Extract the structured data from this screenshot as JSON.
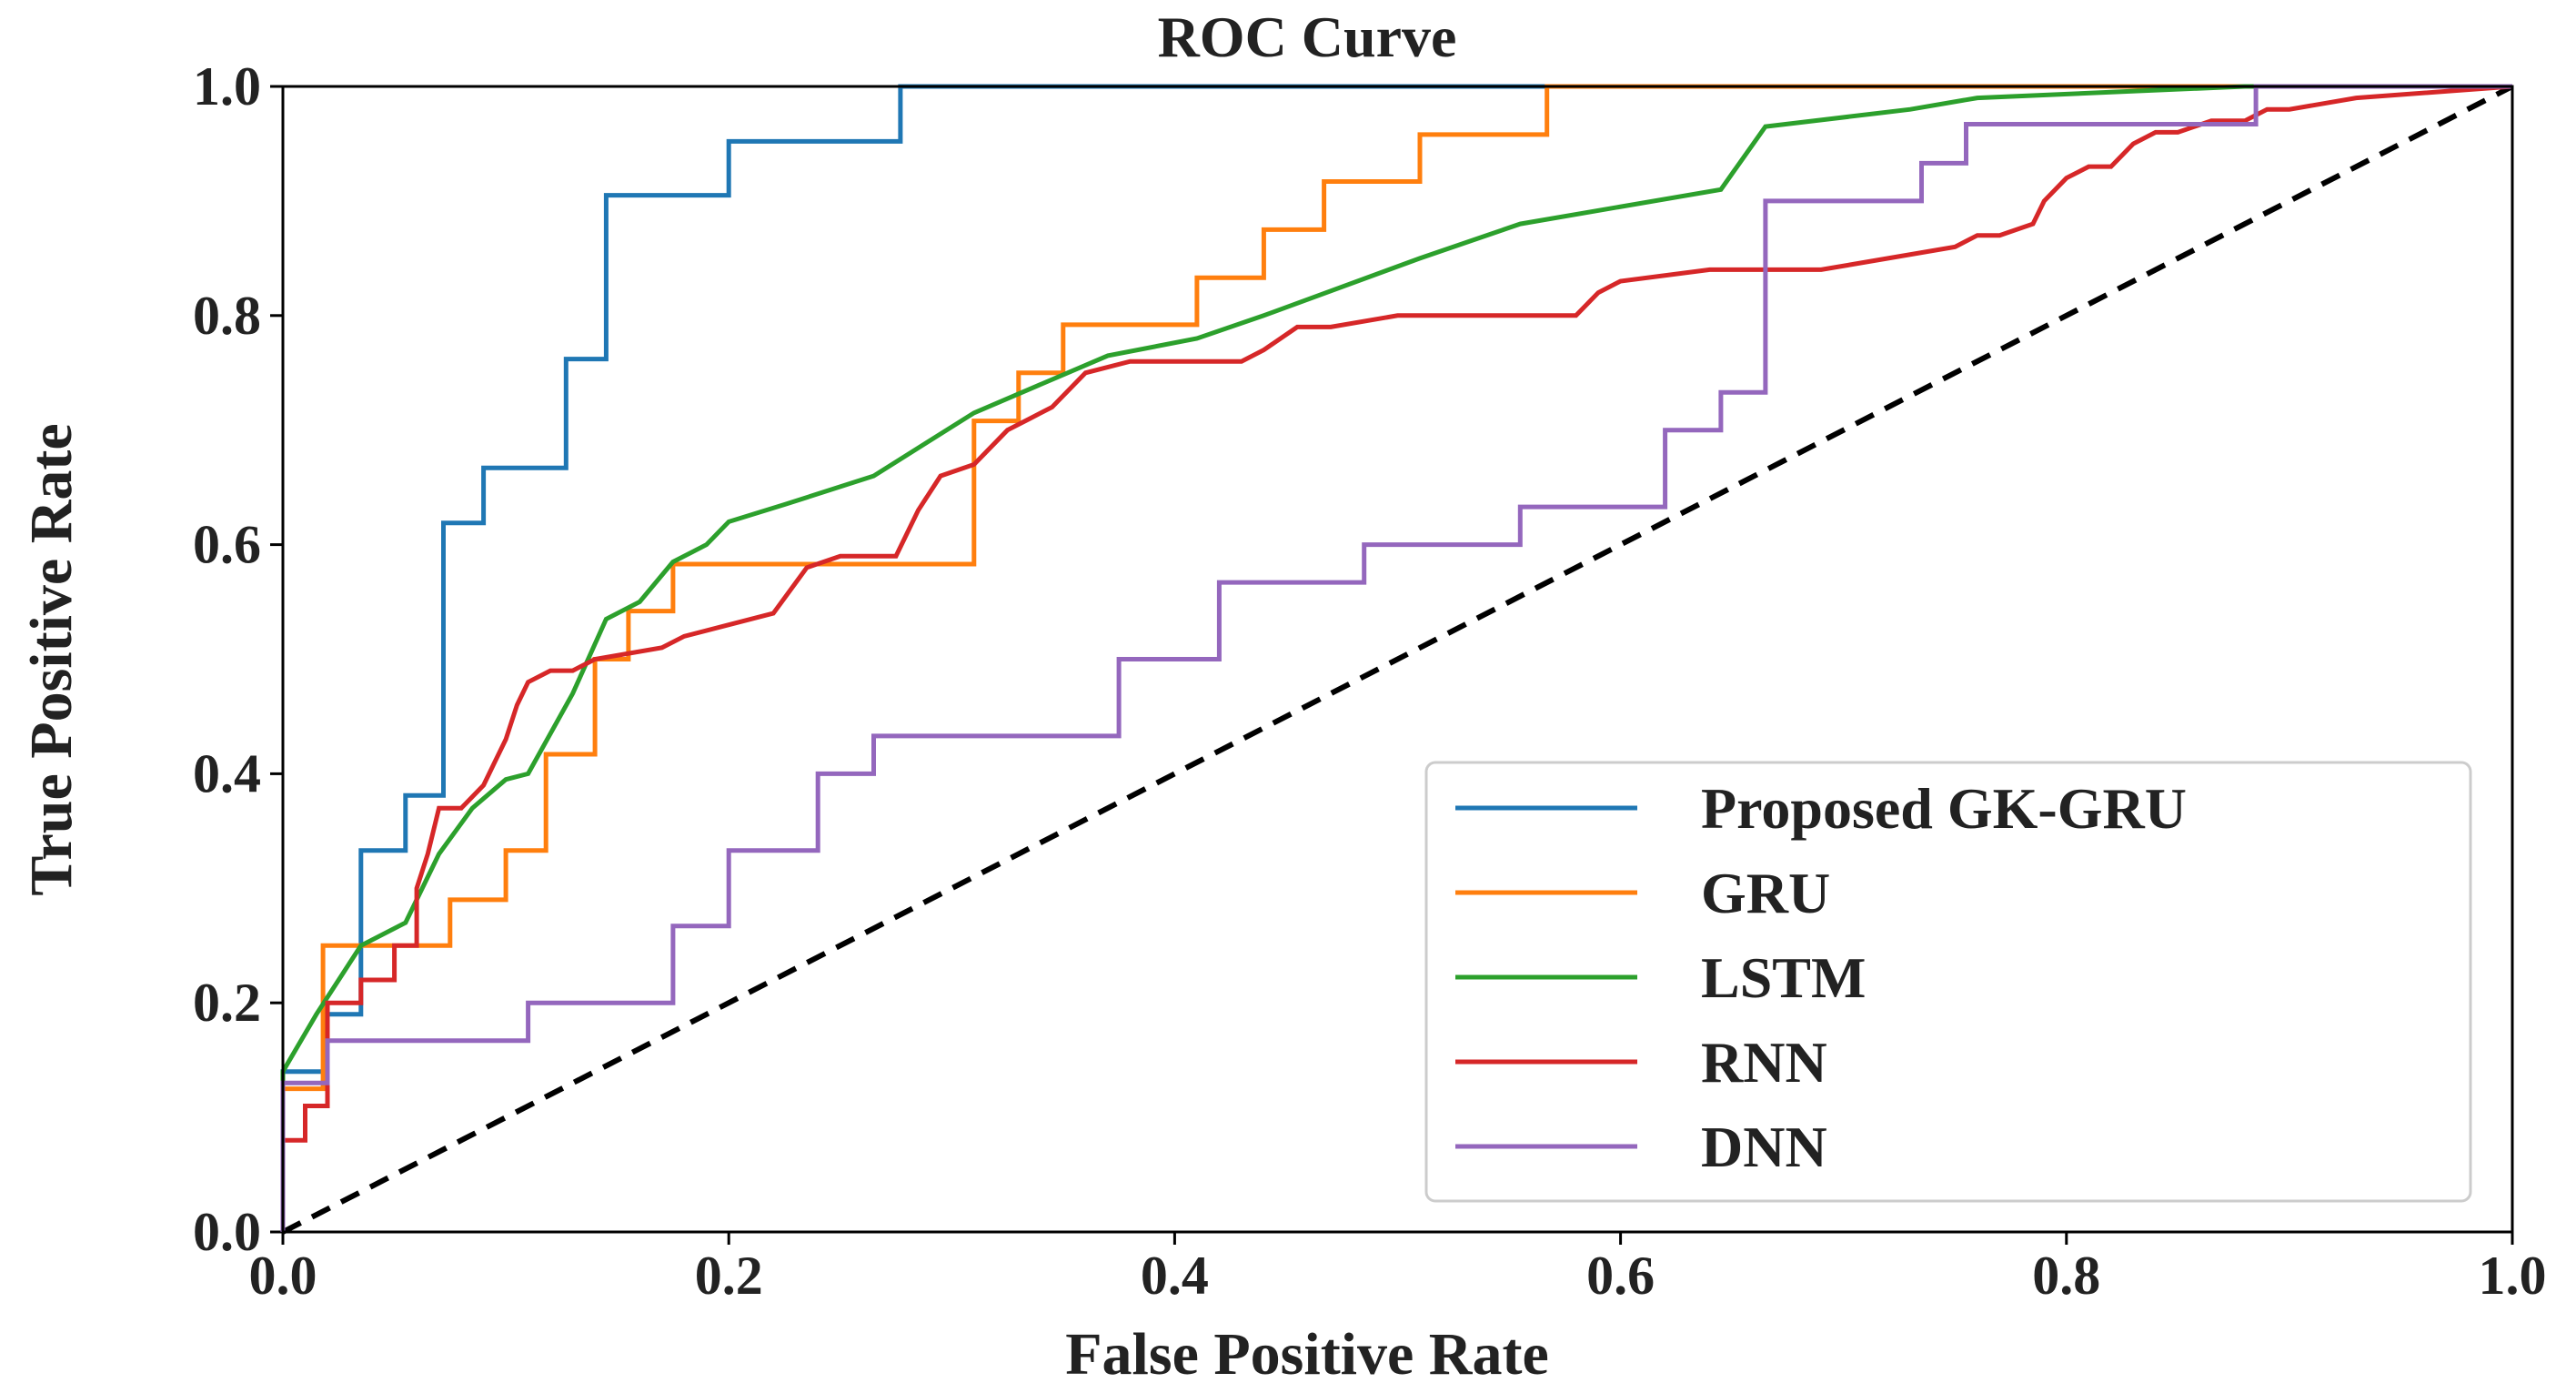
{
  "chart_data": {
    "type": "line",
    "title": "ROC Curve",
    "xlabel": "False Positive Rate",
    "ylabel": "True Positive Rate",
    "xlim": [
      0.0,
      1.0
    ],
    "ylim": [
      0.0,
      1.0
    ],
    "xticks": [
      "0.0",
      "0.2",
      "0.4",
      "0.6",
      "0.8",
      "1.0"
    ],
    "yticks": [
      "0.0",
      "0.2",
      "0.4",
      "0.6",
      "0.8",
      "1.0"
    ],
    "grid": false,
    "legend_position": "bottom-right",
    "reference_line": {
      "style": "dashed",
      "color": "#000000",
      "x": [
        0.0,
        1.0
      ],
      "y": [
        0.0,
        1.0
      ]
    },
    "series": [
      {
        "name": "Proposed GK-GRU",
        "color": "#1f77b4",
        "x": [
          0.0,
          0.0,
          0.02,
          0.02,
          0.035,
          0.035,
          0.055,
          0.055,
          0.072,
          0.072,
          0.09,
          0.09,
          0.127,
          0.127,
          0.145,
          0.145,
          0.2,
          0.2,
          0.277,
          0.277,
          0.56,
          1.0
        ],
        "y": [
          0.0,
          0.14,
          0.14,
          0.19,
          0.19,
          0.333,
          0.333,
          0.381,
          0.381,
          0.619,
          0.619,
          0.667,
          0.667,
          0.762,
          0.762,
          0.905,
          0.905,
          0.952,
          0.952,
          1.0,
          1.0,
          1.0
        ]
      },
      {
        "name": "GRU",
        "color": "#ff7f0e",
        "x": [
          0.0,
          0.0,
          0.018,
          0.018,
          0.055,
          0.055,
          0.075,
          0.075,
          0.1,
          0.1,
          0.118,
          0.118,
          0.14,
          0.14,
          0.155,
          0.155,
          0.175,
          0.175,
          0.2,
          0.2,
          0.31,
          0.31,
          0.33,
          0.33,
          0.35,
          0.35,
          0.41,
          0.41,
          0.44,
          0.44,
          0.467,
          0.467,
          0.51,
          0.51,
          0.567,
          0.567,
          1.0
        ],
        "y": [
          0.0,
          0.125,
          0.125,
          0.25,
          0.25,
          0.25,
          0.25,
          0.29,
          0.29,
          0.333,
          0.333,
          0.417,
          0.417,
          0.5,
          0.5,
          0.542,
          0.542,
          0.583,
          0.583,
          0.583,
          0.583,
          0.708,
          0.708,
          0.75,
          0.75,
          0.792,
          0.792,
          0.833,
          0.833,
          0.875,
          0.875,
          0.917,
          0.917,
          0.958,
          0.958,
          1.0,
          1.0
        ]
      },
      {
        "name": "LSTM",
        "color": "#2ca02c",
        "x": [
          0.0,
          0.0,
          0.015,
          0.035,
          0.055,
          0.07,
          0.085,
          0.1,
          0.11,
          0.13,
          0.145,
          0.16,
          0.175,
          0.19,
          0.2,
          0.225,
          0.265,
          0.31,
          0.37,
          0.41,
          0.44,
          0.51,
          0.555,
          0.645,
          0.665,
          0.73,
          0.76,
          0.82,
          0.88,
          1.0
        ],
        "y": [
          0.0,
          0.14,
          0.19,
          0.25,
          0.27,
          0.33,
          0.37,
          0.395,
          0.4,
          0.47,
          0.535,
          0.55,
          0.585,
          0.6,
          0.62,
          0.635,
          0.66,
          0.715,
          0.765,
          0.78,
          0.8,
          0.85,
          0.88,
          0.91,
          0.965,
          0.98,
          0.99,
          0.995,
          1.0,
          1.0
        ]
      },
      {
        "name": "RNN",
        "color": "#d62728",
        "x": [
          0.0,
          0.0,
          0.01,
          0.01,
          0.02,
          0.02,
          0.035,
          0.035,
          0.05,
          0.05,
          0.06,
          0.06,
          0.065,
          0.07,
          0.08,
          0.09,
          0.095,
          0.1,
          0.105,
          0.11,
          0.12,
          0.13,
          0.14,
          0.17,
          0.18,
          0.2,
          0.22,
          0.235,
          0.25,
          0.275,
          0.285,
          0.295,
          0.31,
          0.325,
          0.335,
          0.345,
          0.36,
          0.38,
          0.43,
          0.44,
          0.455,
          0.47,
          0.5,
          0.58,
          0.59,
          0.6,
          0.64,
          0.69,
          0.72,
          0.75,
          0.76,
          0.77,
          0.785,
          0.79,
          0.8,
          0.81,
          0.82,
          0.83,
          0.84,
          0.85,
          0.865,
          0.88,
          0.89,
          0.9,
          0.93,
          1.0
        ],
        "y": [
          0.0,
          0.08,
          0.08,
          0.11,
          0.11,
          0.2,
          0.2,
          0.22,
          0.22,
          0.25,
          0.25,
          0.3,
          0.33,
          0.37,
          0.37,
          0.39,
          0.41,
          0.43,
          0.46,
          0.48,
          0.49,
          0.49,
          0.5,
          0.51,
          0.52,
          0.53,
          0.54,
          0.58,
          0.59,
          0.59,
          0.63,
          0.66,
          0.67,
          0.7,
          0.71,
          0.72,
          0.75,
          0.76,
          0.76,
          0.77,
          0.79,
          0.79,
          0.8,
          0.8,
          0.82,
          0.83,
          0.84,
          0.84,
          0.85,
          0.86,
          0.87,
          0.87,
          0.88,
          0.9,
          0.92,
          0.93,
          0.93,
          0.95,
          0.96,
          0.96,
          0.97,
          0.97,
          0.98,
          0.98,
          0.99,
          1.0
        ]
      },
      {
        "name": "DNN",
        "color": "#9467bd",
        "x": [
          0.0,
          0.0,
          0.02,
          0.02,
          0.11,
          0.11,
          0.175,
          0.175,
          0.2,
          0.2,
          0.24,
          0.24,
          0.265,
          0.265,
          0.375,
          0.375,
          0.42,
          0.42,
          0.485,
          0.485,
          0.555,
          0.555,
          0.62,
          0.62,
          0.645,
          0.645,
          0.665,
          0.665,
          0.735,
          0.735,
          0.755,
          0.755,
          0.885,
          0.885,
          1.0
        ],
        "y": [
          0.0,
          0.13,
          0.13,
          0.167,
          0.167,
          0.2,
          0.2,
          0.267,
          0.267,
          0.333,
          0.333,
          0.4,
          0.4,
          0.433,
          0.433,
          0.5,
          0.5,
          0.567,
          0.567,
          0.6,
          0.6,
          0.633,
          0.633,
          0.7,
          0.7,
          0.733,
          0.733,
          0.9,
          0.9,
          0.933,
          0.933,
          0.967,
          0.967,
          1.0,
          1.0
        ]
      }
    ]
  }
}
